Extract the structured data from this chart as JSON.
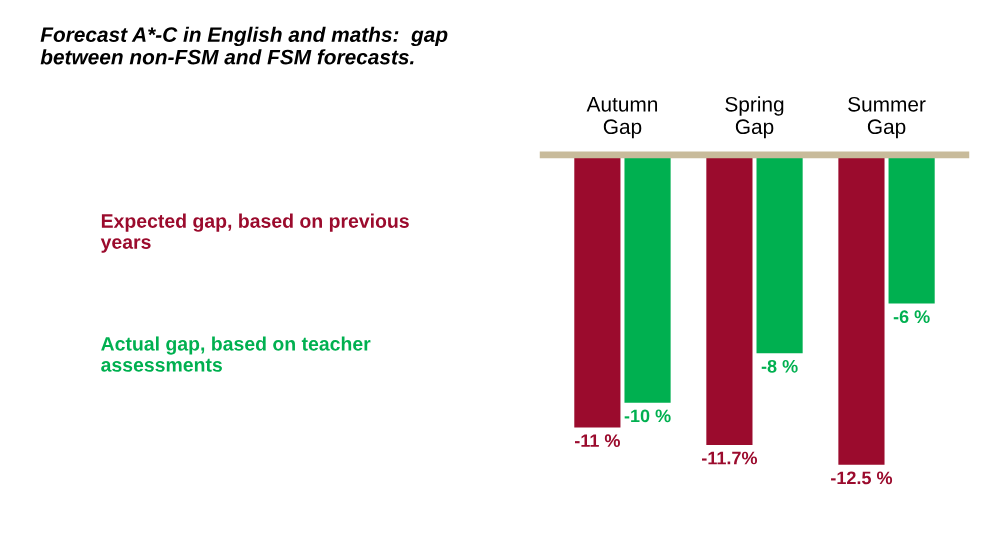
{
  "chart_data": {
    "type": "bar",
    "title": "Forecast A*-C in English and maths:  gap between non-FSM and FSM forecasts.",
    "categories": [
      "Autumn\nGap",
      "Spring\nGap",
      "Summer\nGap"
    ],
    "series": [
      {
        "name": "Expected gap, based on previous years",
        "color": "#9b0b2d",
        "values": [
          -11,
          -11.7,
          -12.5
        ],
        "value_labels": [
          "-11 %",
          "-11.7%",
          "-12.5 %"
        ]
      },
      {
        "name": "Actual gap, based on teacher assessments",
        "color": "#00b050",
        "values": [
          -10,
          -8,
          -6
        ],
        "value_labels": [
          "-10 %",
          "-8 %",
          "-6 %"
        ]
      }
    ],
    "legend": "left",
    "grid": false
  }
}
